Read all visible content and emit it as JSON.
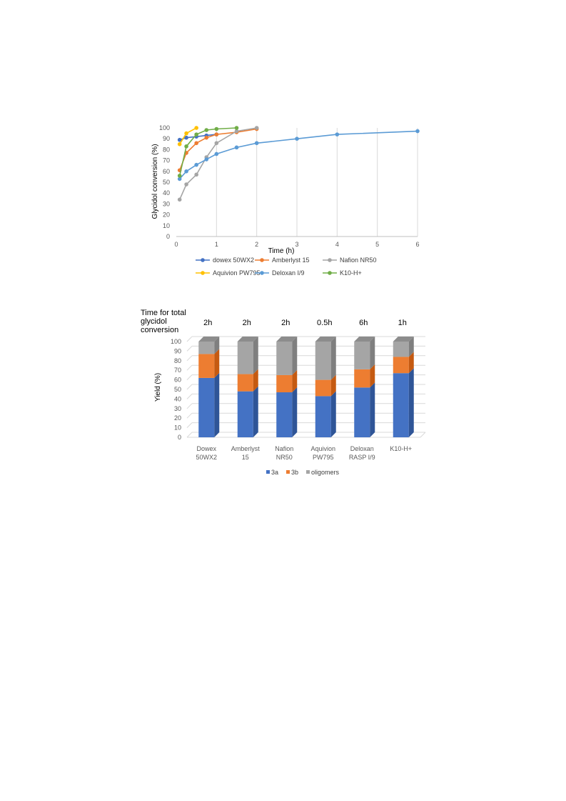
{
  "chart_data": [
    {
      "type": "line",
      "title": "",
      "xlabel": "Time (h)",
      "ylabel": "Glycidol conversion (%)",
      "xlim": [
        0,
        6
      ],
      "ylim": [
        0,
        100
      ],
      "xticks": [
        "0",
        "1",
        "2",
        "3",
        "4",
        "5",
        "6"
      ],
      "yticks": [
        "0",
        "10",
        "20",
        "30",
        "40",
        "50",
        "60",
        "70",
        "80",
        "90",
        "100"
      ],
      "grid": "vertical",
      "legend": "bottom",
      "series": [
        {
          "name": "dowex 50WX2",
          "color": "#4472C4",
          "x": [
            0.083,
            0.25,
            0.5,
            0.75,
            1.0
          ],
          "y": [
            89,
            91,
            92,
            93,
            94
          ]
        },
        {
          "name": "Amberlyst 15",
          "color": "#ED7D31",
          "x": [
            0.083,
            0.25,
            0.5,
            0.75,
            1.0,
            1.5,
            2.0
          ],
          "y": [
            61,
            77,
            86,
            91,
            94,
            96,
            99
          ]
        },
        {
          "name": "Nafion NR50",
          "color": "#A5A5A5",
          "x": [
            0.083,
            0.25,
            0.5,
            0.75,
            1.0,
            1.5,
            2.0
          ],
          "y": [
            34,
            48,
            57,
            73,
            86,
            97,
            100
          ]
        },
        {
          "name": "Aquivion PW795",
          "color": "#FFC000",
          "x": [
            0.083,
            0.25,
            0.5
          ],
          "y": [
            85,
            95,
            100
          ]
        },
        {
          "name": "Deloxan I/9",
          "color": "#5B9BD5",
          "x": [
            0.083,
            0.25,
            0.5,
            0.75,
            1.0,
            1.5,
            2.0,
            3.0,
            4.0,
            6.0
          ],
          "y": [
            53,
            60,
            66,
            71,
            76,
            82,
            86,
            90,
            94,
            97
          ]
        },
        {
          "name": "K10-H+",
          "color": "#70AD47",
          "x": [
            0.083,
            0.25,
            0.5,
            0.75,
            1.0,
            1.5
          ],
          "y": [
            56,
            83,
            94,
            98,
            99,
            100
          ]
        }
      ]
    },
    {
      "type": "bar",
      "stacked": true,
      "title": "",
      "header_label": "Time for total glycidol conversion",
      "header_lines": [
        "Time for total",
        "glycidol",
        "conversion"
      ],
      "xlabel": "",
      "ylabel": "Yield (%)",
      "ylim": [
        0,
        100
      ],
      "yticks": [
        "0",
        "10",
        "20",
        "30",
        "40",
        "50",
        "60",
        "70",
        "80",
        "90",
        "100"
      ],
      "categories": [
        [
          "Dowex",
          "50WX2"
        ],
        [
          "Amberlyst",
          "15"
        ],
        [
          "Nafion",
          "NR50"
        ],
        [
          "Aquivion",
          "PW795"
        ],
        [
          "Deloxan",
          "RASP I/9"
        ],
        [
          "K10-H+"
        ]
      ],
      "times": [
        "2h",
        "2h",
        "2h",
        "0.5h",
        "6h",
        "1h"
      ],
      "legend": "bottom",
      "series": [
        {
          "name": "3a",
          "color": "#4472C4",
          "side": "#2F5597",
          "values": [
            62,
            48,
            47,
            43,
            52,
            67
          ]
        },
        {
          "name": "3b",
          "color": "#ED7D31",
          "side": "#C55A11",
          "values": [
            25,
            18,
            18,
            17,
            19,
            17
          ]
        },
        {
          "name": "oligomers",
          "color": "#A5A5A5",
          "side": "#7F7F7F",
          "values": [
            13,
            34,
            35,
            40,
            29,
            16
          ]
        }
      ]
    }
  ]
}
